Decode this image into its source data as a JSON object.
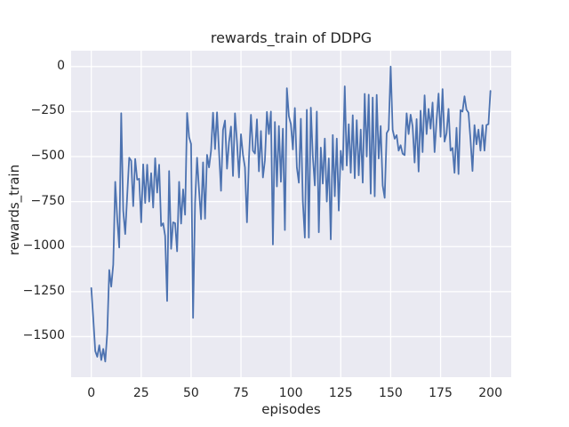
{
  "chart_data": {
    "type": "line",
    "title": "rewards_train of DDPG",
    "xlabel": "episodes",
    "ylabel": "rewards_train",
    "x": {
      "start": 0,
      "step": 1,
      "end": 200
    },
    "series": [
      {
        "name": "rewards_train",
        "color": "#4c72b0",
        "values": [
          -1230,
          -1400,
          -1580,
          -1612,
          -1548,
          -1630,
          -1568,
          -1638,
          -1480,
          -1130,
          -1222,
          -1100,
          -640,
          -843,
          -1005,
          -259,
          -800,
          -930,
          -717,
          -506,
          -523,
          -775,
          -513,
          -628,
          -623,
          -865,
          -543,
          -758,
          -545,
          -750,
          -592,
          -783,
          -509,
          -700,
          -545,
          -885,
          -870,
          -940,
          -1302,
          -580,
          -1012,
          -865,
          -870,
          -1026,
          -640,
          -872,
          -682,
          -823,
          -258,
          -392,
          -430,
          -1396,
          -757,
          -506,
          -688,
          -848,
          -532,
          -845,
          -490,
          -560,
          -468,
          -256,
          -458,
          -254,
          -472,
          -690,
          -352,
          -300,
          -567,
          -420,
          -333,
          -608,
          -260,
          -417,
          -616,
          -376,
          -490,
          -560,
          -865,
          -510,
          -268,
          -467,
          -483,
          -293,
          -582,
          -358,
          -616,
          -520,
          -252,
          -375,
          -250,
          -988,
          -308,
          -666,
          -330,
          -640,
          -345,
          -908,
          -120,
          -275,
          -320,
          -460,
          -230,
          -560,
          -645,
          -290,
          -750,
          -950,
          -240,
          -950,
          -228,
          -500,
          -660,
          -250,
          -920,
          -450,
          -650,
          -400,
          -750,
          -510,
          -960,
          -380,
          -720,
          -400,
          -800,
          -468,
          -573,
          -110,
          -550,
          -320,
          -590,
          -270,
          -620,
          -298,
          -604,
          -350,
          -645,
          -152,
          -500,
          -156,
          -706,
          -172,
          -721,
          -157,
          -511,
          -330,
          -660,
          -729,
          -370,
          -350,
          0,
          -351,
          -401,
          -381,
          -467,
          -437,
          -484,
          -492,
          -260,
          -375,
          -267,
          -332,
          -533,
          -292,
          -583,
          -245,
          -475,
          -160,
          -375,
          -235,
          -345,
          -200,
          -475,
          -300,
          -150,
          -390,
          -125,
          -417,
          -370,
          -235,
          -467,
          -452,
          -590,
          -340,
          -597,
          -242,
          -250,
          -165,
          -240,
          -256,
          -405,
          -580,
          -325,
          -432,
          -350,
          -467,
          -325,
          -467,
          -325,
          -320,
          -135
        ]
      }
    ],
    "xlim": [
      -10.1,
      210.4
    ],
    "ylim": [
      -1725,
      88
    ],
    "xticks": [
      0,
      25,
      50,
      75,
      100,
      125,
      150,
      175,
      200
    ],
    "yticks": [
      0,
      -250,
      -500,
      -750,
      -1000,
      -1250,
      -1500
    ],
    "xtick_labels": [
      "0",
      "25",
      "50",
      "75",
      "100",
      "125",
      "150",
      "175",
      "200"
    ],
    "ytick_labels": [
      "0",
      "−250",
      "−500",
      "−750",
      "−1000",
      "−1250",
      "−1500"
    ],
    "grid": true,
    "legend": false,
    "style": {
      "fig_bg": "#ffffff",
      "plot_bg": "#eaeaf2",
      "grid_color": "#ffffff",
      "text_color": "#262626",
      "line_width": 1.8
    }
  }
}
